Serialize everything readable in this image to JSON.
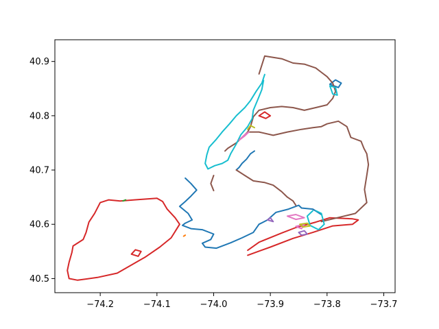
{
  "chart_data": {
    "type": "line",
    "title": "",
    "xlabel": "",
    "ylabel": "",
    "xlim": [
      -74.28,
      -73.68
    ],
    "ylim": [
      40.474,
      40.94
    ],
    "grid": false,
    "x_ticks": [
      -74.2,
      -74.1,
      -74.0,
      -73.9,
      -73.8,
      -73.7
    ],
    "y_ticks": [
      40.5,
      40.6,
      40.7,
      40.8,
      40.9
    ],
    "x_tick_labels": [
      "−74.2",
      "−74.1",
      "−74.0",
      "−73.9",
      "−73.8",
      "−73.7"
    ],
    "y_tick_labels": [
      "40.5",
      "40.6",
      "40.7",
      "40.8",
      "40.9"
    ],
    "series": [
      {
        "color": "#d62728",
        "points": [
          [
            -74.255,
            40.5
          ],
          [
            -74.24,
            40.497
          ],
          [
            -74.205,
            40.502
          ],
          [
            -74.17,
            40.51
          ],
          [
            -74.145,
            40.525
          ],
          [
            -74.12,
            40.54
          ],
          [
            -74.095,
            40.558
          ],
          [
            -74.075,
            40.575
          ],
          [
            -74.06,
            40.6
          ],
          [
            -74.068,
            40.612
          ],
          [
            -74.082,
            40.628
          ],
          [
            -74.09,
            40.642
          ],
          [
            -74.1,
            40.648
          ],
          [
            -74.14,
            40.645
          ],
          [
            -74.165,
            40.643
          ],
          [
            -74.185,
            40.645
          ],
          [
            -74.2,
            40.64
          ],
          [
            -74.21,
            40.62
          ],
          [
            -74.22,
            40.604
          ],
          [
            -74.225,
            40.585
          ],
          [
            -74.23,
            40.572
          ],
          [
            -74.248,
            40.56
          ],
          [
            -74.25,
            40.548
          ],
          [
            -74.255,
            40.53
          ],
          [
            -74.258,
            40.515
          ],
          [
            -74.255,
            40.5
          ]
        ]
      },
      {
        "color": "#d62728",
        "points": [
          [
            -74.145,
            40.545
          ],
          [
            -74.138,
            40.553
          ],
          [
            -74.128,
            40.55
          ],
          [
            -74.133,
            40.541
          ],
          [
            -74.145,
            40.545
          ]
        ]
      },
      {
        "color": "#d62728",
        "points": [
          [
            -73.94,
            40.543
          ],
          [
            -73.9,
            40.558
          ],
          [
            -73.86,
            40.574
          ],
          [
            -73.825,
            40.585
          ],
          [
            -73.79,
            40.597
          ],
          [
            -73.755,
            40.6
          ],
          [
            -73.745,
            40.608
          ],
          [
            -73.755,
            40.61
          ],
          [
            -73.795,
            40.612
          ],
          [
            -73.82,
            40.604
          ],
          [
            -73.855,
            40.594
          ],
          [
            -73.88,
            40.584
          ],
          [
            -73.92,
            40.567
          ],
          [
            -73.94,
            40.552
          ]
        ]
      },
      {
        "color": "#d62728",
        "points": [
          [
            -73.92,
            40.8
          ],
          [
            -73.91,
            40.807
          ],
          [
            -73.9,
            40.8
          ],
          [
            -73.908,
            40.795
          ],
          [
            -73.92,
            40.8
          ]
        ]
      },
      {
        "color": "#1f77b4",
        "points": [
          [
            -74.05,
            40.685
          ],
          [
            -74.04,
            40.675
          ],
          [
            -74.03,
            40.663
          ],
          [
            -74.04,
            40.652
          ],
          [
            -74.05,
            40.642
          ],
          [
            -74.06,
            40.633
          ],
          [
            -74.045,
            40.62
          ],
          [
            -74.038,
            40.608
          ],
          [
            -74.05,
            40.602
          ],
          [
            -74.055,
            40.598
          ],
          [
            -74.04,
            40.592
          ],
          [
            -74.02,
            40.59
          ],
          [
            -74.0,
            40.582
          ],
          [
            -74.005,
            40.572
          ],
          [
            -74.02,
            40.565
          ],
          [
            -74.015,
            40.558
          ],
          [
            -73.995,
            40.556
          ],
          [
            -73.97,
            40.566
          ],
          [
            -73.95,
            40.575
          ],
          [
            -73.93,
            40.585
          ],
          [
            -73.92,
            40.6
          ],
          [
            -73.905,
            40.608
          ],
          [
            -73.89,
            40.622
          ],
          [
            -73.868,
            40.628
          ],
          [
            -73.855,
            40.633
          ],
          [
            -73.85,
            40.635
          ],
          [
            -73.845,
            40.63
          ],
          [
            -73.825,
            40.628
          ],
          [
            -73.81,
            40.618
          ]
        ]
      },
      {
        "color": "#1f77b4",
        "points": [
          [
            -73.96,
            40.7
          ],
          [
            -73.955,
            40.705
          ],
          [
            -73.95,
            40.712
          ],
          [
            -73.942,
            40.72
          ],
          [
            -73.935,
            40.73
          ],
          [
            -73.928,
            40.735
          ]
        ]
      },
      {
        "color": "#1f77b4",
        "points": [
          [
            -73.795,
            40.858
          ],
          [
            -73.785,
            40.866
          ],
          [
            -73.775,
            40.86
          ],
          [
            -73.78,
            40.852
          ],
          [
            -73.795,
            40.858
          ]
        ]
      },
      {
        "color": "#8c564b",
        "points": [
          [
            -73.92,
            40.877
          ],
          [
            -73.91,
            40.91
          ],
          [
            -73.88,
            40.905
          ],
          [
            -73.86,
            40.897
          ],
          [
            -73.84,
            40.895
          ],
          [
            -73.82,
            40.888
          ],
          [
            -73.81,
            40.88
          ],
          [
            -73.8,
            40.872
          ],
          [
            -73.79,
            40.86
          ],
          [
            -73.785,
            40.845
          ],
          [
            -73.79,
            40.832
          ],
          [
            -73.8,
            40.82
          ],
          [
            -73.82,
            40.815
          ],
          [
            -73.84,
            40.81
          ],
          [
            -73.86,
            40.815
          ],
          [
            -73.88,
            40.817
          ],
          [
            -73.9,
            40.815
          ],
          [
            -73.92,
            40.81
          ],
          [
            -73.93,
            40.798
          ],
          [
            -73.935,
            40.78
          ],
          [
            -73.94,
            40.77
          ],
          [
            -73.96,
            40.75
          ],
          [
            -73.975,
            40.74
          ],
          [
            -73.98,
            40.735
          ]
        ]
      },
      {
        "color": "#8c564b",
        "points": [
          [
            -73.94,
            40.77
          ],
          [
            -73.92,
            40.77
          ],
          [
            -73.895,
            40.764
          ],
          [
            -73.87,
            40.77
          ],
          [
            -73.845,
            40.775
          ],
          [
            -73.825,
            40.778
          ],
          [
            -73.81,
            40.78
          ],
          [
            -73.8,
            40.785
          ],
          [
            -73.78,
            40.79
          ],
          [
            -73.765,
            40.78
          ],
          [
            -73.758,
            40.76
          ],
          [
            -73.74,
            40.753
          ],
          [
            -73.735,
            40.74
          ],
          [
            -73.73,
            40.73
          ],
          [
            -73.727,
            40.71
          ],
          [
            -73.73,
            40.69
          ],
          [
            -73.734,
            40.664
          ],
          [
            -73.73,
            40.64
          ],
          [
            -73.74,
            40.63
          ],
          [
            -73.75,
            40.62
          ],
          [
            -73.77,
            40.615
          ],
          [
            -73.79,
            40.61
          ],
          [
            -73.81,
            40.605
          ]
        ]
      },
      {
        "color": "#8c564b",
        "points": [
          [
            -73.96,
            40.7
          ],
          [
            -73.945,
            40.69
          ],
          [
            -73.93,
            40.68
          ],
          [
            -73.91,
            40.677
          ],
          [
            -73.895,
            40.672
          ],
          [
            -73.88,
            40.66
          ],
          [
            -73.87,
            40.65
          ],
          [
            -73.86,
            40.643
          ],
          [
            -73.855,
            40.635
          ]
        ]
      },
      {
        "color": "#8c564b",
        "points": [
          [
            -74.0,
            40.69
          ],
          [
            -74.005,
            40.675
          ],
          [
            -74.0,
            40.662
          ]
        ]
      },
      {
        "color": "#17becf",
        "points": [
          [
            -73.91,
            40.876
          ],
          [
            -73.915,
            40.86
          ],
          [
            -73.925,
            40.845
          ],
          [
            -73.935,
            40.828
          ],
          [
            -73.945,
            40.815
          ],
          [
            -73.96,
            40.8
          ],
          [
            -73.972,
            40.785
          ],
          [
            -73.985,
            40.77
          ],
          [
            -73.995,
            40.757
          ],
          [
            -74.008,
            40.742
          ],
          [
            -74.012,
            40.728
          ],
          [
            -74.015,
            40.712
          ],
          [
            -74.01,
            40.702
          ],
          [
            -73.998,
            40.708
          ],
          [
            -73.985,
            40.712
          ],
          [
            -73.975,
            40.718
          ],
          [
            -73.97,
            40.73
          ],
          [
            -73.96,
            40.748
          ],
          [
            -73.952,
            40.765
          ],
          [
            -73.94,
            40.78
          ],
          [
            -73.932,
            40.795
          ],
          [
            -73.93,
            40.81
          ],
          [
            -73.922,
            40.83
          ],
          [
            -73.915,
            40.848
          ],
          [
            -73.912,
            40.865
          ]
        ]
      },
      {
        "color": "#17becf",
        "points": [
          [
            -73.82,
            40.625
          ],
          [
            -73.81,
            40.62
          ],
          [
            -73.805,
            40.6
          ],
          [
            -73.815,
            40.59
          ],
          [
            -73.83,
            40.598
          ],
          [
            -73.835,
            40.615
          ],
          [
            -73.825,
            40.625
          ]
        ]
      },
      {
        "color": "#17becf",
        "points": [
          [
            -73.795,
            40.855
          ],
          [
            -73.79,
            40.84
          ],
          [
            -73.782,
            40.838
          ],
          [
            -73.785,
            40.852
          ],
          [
            -73.795,
            40.855
          ]
        ]
      },
      {
        "color": "#e377c2",
        "points": [
          [
            -73.955,
            40.755
          ],
          [
            -73.945,
            40.765
          ],
          [
            -73.938,
            40.77
          ],
          [
            -73.945,
            40.763
          ],
          [
            -73.955,
            40.755
          ]
        ]
      },
      {
        "color": "#e377c2",
        "points": [
          [
            -73.87,
            40.615
          ],
          [
            -73.855,
            40.618
          ],
          [
            -73.84,
            40.612
          ],
          [
            -73.855,
            40.609
          ],
          [
            -73.87,
            40.615
          ]
        ]
      },
      {
        "color": "#e377c2",
        "points": [
          [
            -73.855,
            40.596
          ],
          [
            -73.84,
            40.6
          ],
          [
            -73.845,
            40.592
          ],
          [
            -73.855,
            40.596
          ]
        ]
      },
      {
        "color": "#9467bd",
        "points": [
          [
            -73.85,
            40.585
          ],
          [
            -73.84,
            40.588
          ],
          [
            -73.835,
            40.582
          ],
          [
            -73.845,
            40.58
          ],
          [
            -73.85,
            40.585
          ]
        ]
      },
      {
        "color": "#9467bd",
        "points": [
          [
            -73.905,
            40.608
          ],
          [
            -73.9,
            40.612
          ],
          [
            -73.895,
            40.605
          ],
          [
            -73.905,
            40.608
          ]
        ]
      },
      {
        "color": "#bcbd22",
        "points": [
          [
            -73.848,
            40.6
          ],
          [
            -73.835,
            40.602
          ],
          [
            -73.83,
            40.597
          ],
          [
            -73.842,
            40.595
          ],
          [
            -73.848,
            40.6
          ]
        ]
      },
      {
        "color": "#bcbd22",
        "points": [
          [
            -73.94,
            40.775
          ],
          [
            -73.935,
            40.782
          ],
          [
            -73.928,
            40.778
          ]
        ]
      },
      {
        "color": "#ff7f0e",
        "points": [
          [
            -74.053,
            40.578
          ],
          [
            -74.05,
            40.58
          ]
        ]
      },
      {
        "color": "#2ca02c",
        "points": [
          [
            -74.16,
            40.643
          ],
          [
            -74.155,
            40.645
          ]
        ]
      }
    ]
  }
}
